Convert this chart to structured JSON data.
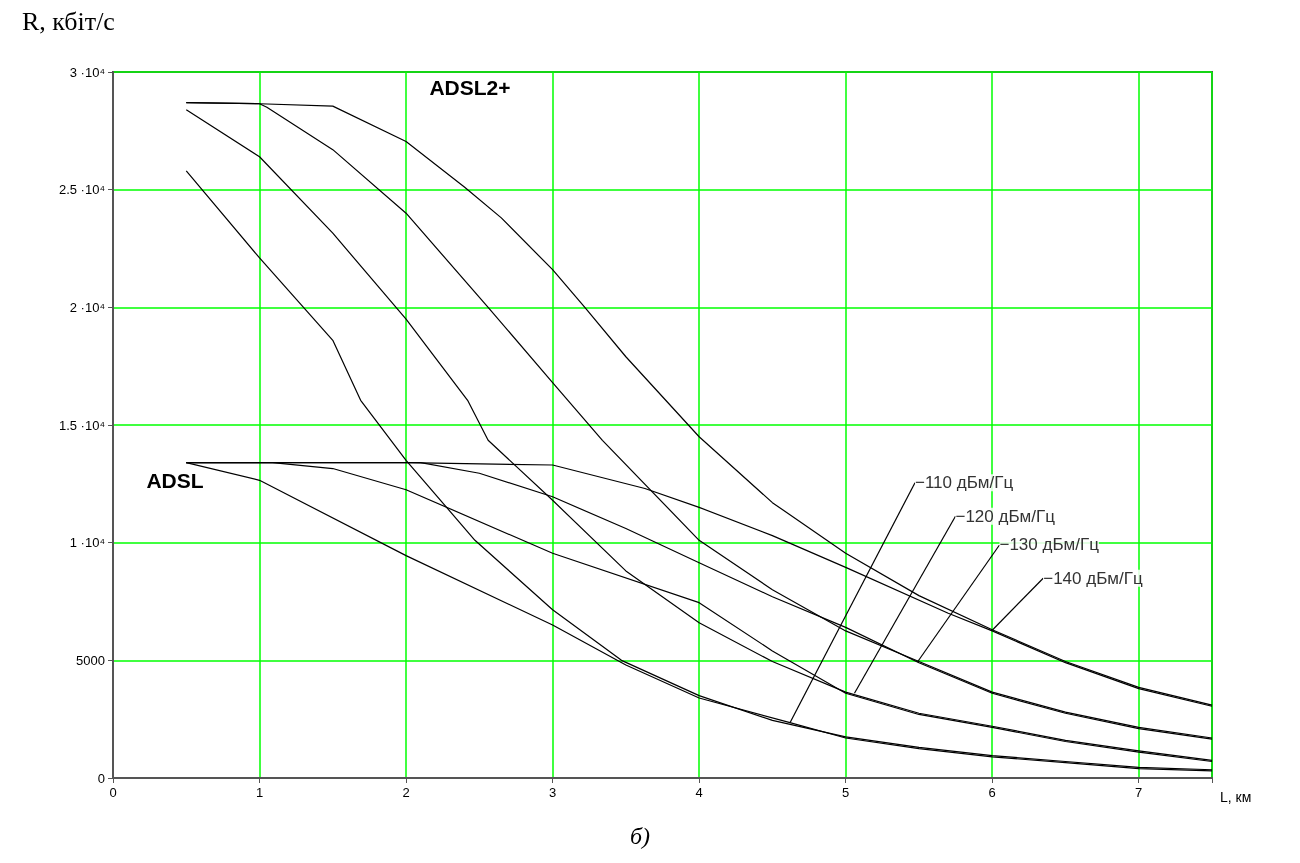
{
  "chart_data": {
    "type": "line",
    "xlabel": "L, км",
    "ylabel": "R, кбіт/с",
    "xlim": [
      0,
      7.5
    ],
    "ylim": [
      0,
      30000
    ],
    "xticks": [
      0,
      1,
      2,
      3,
      4,
      5,
      6,
      7
    ],
    "yticks": [
      0,
      5000,
      {
        "value": 10000,
        "label": "1 ·10⁴"
      },
      {
        "value": 15000,
        "label": "1.5 ·10⁴"
      },
      {
        "value": 20000,
        "label": "2 ·10⁴"
      },
      {
        "value": 25000,
        "label": "2.5 ·10⁴"
      },
      {
        "value": 30000,
        "label": "3 ·10⁴"
      }
    ],
    "grid": true,
    "series": [
      {
        "color": "#000000",
        "x": [
          0.5,
          1,
          1.5,
          2,
          2.4,
          2.65,
          3,
          3.22,
          3.5,
          4,
          4.5,
          5,
          5.5,
          6,
          6.5,
          7,
          7.5
        ],
        "values": [
          28700,
          28650,
          28550,
          27050,
          25100,
          23800,
          21600,
          20000,
          17900,
          14500,
          11700,
          9550,
          7750,
          6300,
          4950,
          3850,
          3100
        ]
      },
      {
        "color": "#000000",
        "x": [
          0.5,
          1,
          1.05,
          1.5,
          2,
          2.56,
          3,
          3.34,
          4,
          4.5,
          5,
          5.5,
          6,
          6.5,
          7,
          7.5
        ],
        "values": [
          28700,
          28650,
          28500,
          26700,
          24000,
          20000,
          16800,
          14350,
          10100,
          8000,
          6250,
          4950,
          3650,
          2800,
          2150,
          1700
        ]
      },
      {
        "color": "#000000",
        "x": [
          0.5,
          1,
          1.5,
          2,
          2.42,
          2.56,
          3,
          3.5,
          4,
          4.5,
          5,
          5.5,
          6,
          6.5,
          7,
          7.5
        ],
        "values": [
          28400,
          26400,
          23150,
          19500,
          16050,
          14350,
          11800,
          8800,
          6600,
          4950,
          3650,
          2750,
          2200,
          1600,
          1150,
          750
        ]
      },
      {
        "color": "#000000",
        "x": [
          0.5,
          1,
          1.5,
          1.69,
          2,
          2.47,
          3,
          3.47,
          4,
          4.5,
          5,
          5.5,
          6,
          6.5,
          7,
          7.5
        ],
        "values": [
          25800,
          22100,
          18600,
          16050,
          13500,
          10100,
          7150,
          5000,
          3500,
          2450,
          1750,
          1300,
          950,
          700,
          450,
          350
        ]
      },
      {
        "color": "#000000",
        "x": [
          0.5,
          1,
          2,
          3,
          3.63,
          4,
          4.5,
          5,
          5.7,
          6,
          6.5,
          7,
          7.5
        ],
        "values": [
          13400,
          13400,
          13400,
          13300,
          12300,
          11500,
          10300,
          8950,
          7000,
          6250,
          4900,
          3800,
          3050
        ]
      },
      {
        "color": "#000000",
        "x": [
          0.5,
          1,
          2.1,
          2.5,
          3,
          3.5,
          4,
          4.5,
          5,
          5.5,
          6,
          6.5,
          7,
          7.5
        ],
        "values": [
          13400,
          13400,
          13400,
          12950,
          11950,
          10600,
          9150,
          7700,
          6400,
          4900,
          3600,
          2750,
          2100,
          1650
        ]
      },
      {
        "color": "#000000",
        "x": [
          0.5,
          1.09,
          1.5,
          2,
          3,
          4,
          4.5,
          5,
          5.5,
          6,
          6.5,
          7,
          7.5
        ],
        "values": [
          13400,
          13400,
          13150,
          12250,
          9550,
          7450,
          5400,
          3600,
          2700,
          2150,
          1550,
          1100,
          700
        ]
      },
      {
        "color": "#000000",
        "x": [
          0.5,
          1,
          2,
          3,
          3.5,
          4,
          4.62,
          5,
          5.5,
          6,
          6.5,
          7,
          7.5
        ],
        "values": [
          13400,
          12650,
          9450,
          6500,
          4800,
          3400,
          2350,
          1700,
          1250,
          900,
          650,
          400,
          300
        ]
      }
    ],
    "annotations": [
      "ADSL2+",
      "ADSL",
      "б)",
      {
        "text": "−110 дБм/Гц",
        "x": 4.62,
        "y": 2350
      },
      {
        "text": "−120 дБм/Гц",
        "x": 5.06,
        "y": 3600
      },
      {
        "text": "−130 дБм/Гц",
        "x": 5.49,
        "y": 4930
      },
      {
        "text": "−140 дБм/Гц",
        "x": 6,
        "y": 6280
      }
    ]
  }
}
